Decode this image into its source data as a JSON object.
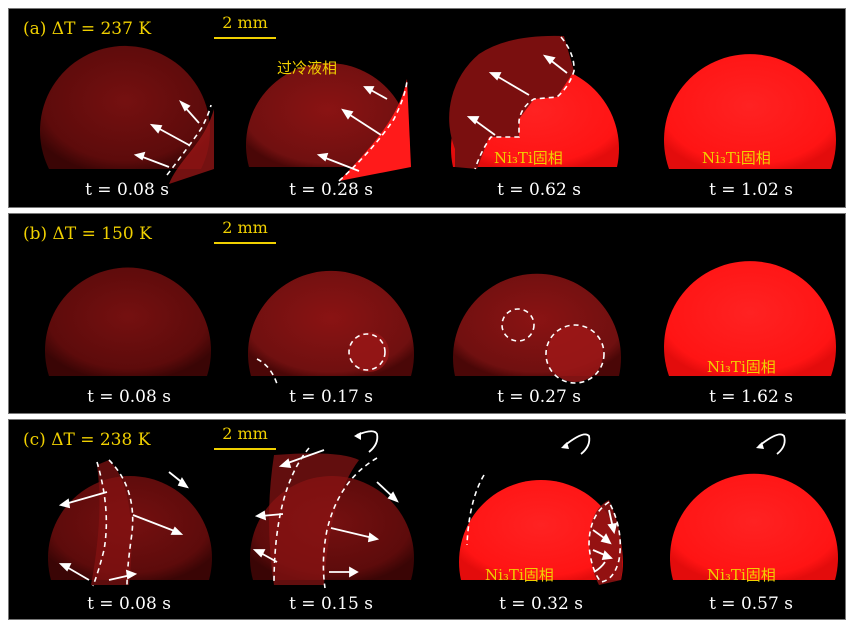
{
  "scale_label": "2 mm",
  "panels": [
    {
      "label": "(a) ΔT = 237 K",
      "times": [
        "t = 0.08 s",
        "t = 0.28 s",
        "t = 0.62 s",
        "t = 1.02 s"
      ],
      "annotations": {
        "liquid": "过冷液相",
        "solid_3": "Ni₃Ti固相",
        "solid_4": "Ni₃Ti固相"
      }
    },
    {
      "label": "(b) ΔT = 150 K",
      "times": [
        "t = 0.08 s",
        "t = 0.17 s",
        "t = 0.27 s",
        "t = 1.62 s"
      ],
      "annotations": {
        "solid_4": "Ni₃Ti固相"
      }
    },
    {
      "label": "(c) ΔT = 238 K",
      "times": [
        "t = 0.08 s",
        "t = 0.15 s",
        "t = 0.32 s",
        "t = 0.57 s"
      ],
      "annotations": {
        "solid_3": "Ni₃Ti固相",
        "solid_4": "Ni₃Ti固相"
      }
    }
  ],
  "colors": {
    "background": "#000000",
    "droplet_dark": "#6a0d0d",
    "droplet_bright": "#ff1a1a",
    "annotation": "#f0d000",
    "caption": "#ffffff",
    "markers": "#ffffff"
  }
}
